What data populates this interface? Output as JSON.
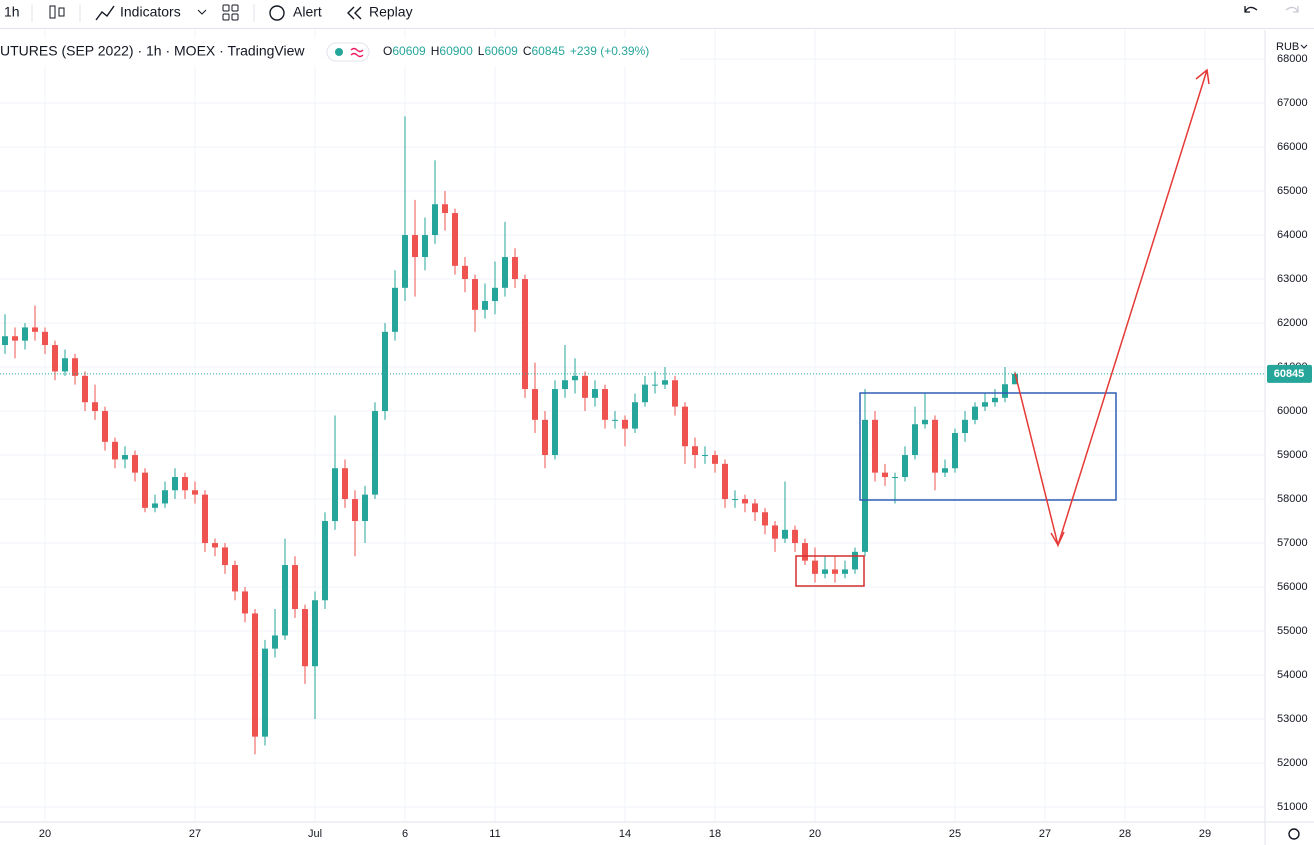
{
  "toolbar": {
    "interval": "1h",
    "indicators": "Indicators",
    "alert": "Alert",
    "replay": "Replay"
  },
  "chart_data": {
    "type": "candlestick",
    "title": "UTURES (SEP 2022) · 1h · MOEX · TradingView",
    "ohlc_labels": [
      "O",
      "H",
      "L",
      "C"
    ],
    "change": "+239 (+0.39%)",
    "currency": "RUB",
    "up_color": "#26a69a",
    "down_color": "#ef5350",
    "grid": true,
    "categories": [
      null,
      null,
      null,
      null,
      "20",
      null,
      null,
      null,
      null,
      null,
      null,
      null,
      null,
      null,
      null,
      null,
      null,
      null,
      null,
      "27",
      null,
      null,
      null,
      null,
      null,
      null,
      null,
      null,
      null,
      null,
      null,
      "Jul",
      null,
      null,
      null,
      null,
      null,
      null,
      null,
      null,
      "6",
      null,
      null,
      null,
      null,
      null,
      null,
      null,
      null,
      "11",
      null,
      null,
      null,
      null,
      null,
      null,
      null,
      null,
      null,
      null,
      null,
      null,
      "14",
      null,
      null,
      null,
      null,
      null,
      null,
      null,
      null,
      "18",
      null,
      null,
      null,
      null,
      null,
      null,
      null,
      null,
      null,
      "20",
      null,
      null,
      null,
      null,
      null,
      null,
      null,
      null,
      null,
      null,
      null,
      null,
      null,
      "25",
      null,
      null,
      null,
      null,
      null,
      null,
      null,
      null,
      "27",
      null,
      null,
      null,
      null,
      null,
      null,
      null,
      "28",
      null,
      null,
      null,
      null,
      null,
      null,
      null,
      "29",
      null,
      null,
      null,
      null,
      null
    ],
    "open": [
      61500,
      61700,
      61600,
      61900,
      61800,
      61500,
      60900,
      61200,
      60800,
      60200,
      60000,
      59300,
      58900,
      59000,
      58600,
      57800,
      57900,
      58200,
      58500,
      58200,
      58100,
      57000,
      56900,
      56500,
      55900,
      55400,
      52600,
      54600,
      54900,
      56500,
      55500,
      54200,
      55700,
      57500,
      58700,
      58000,
      57500,
      58100,
      60000,
      61800,
      62800,
      64000,
      63500,
      64000,
      64700,
      64500,
      63300,
      63000,
      62300,
      62500,
      62800,
      63500,
      63000,
      60500,
      59800,
      59000,
      60500,
      60700,
      60800,
      60300,
      60500,
      59800,
      59800,
      59600,
      60200,
      60600,
      60600,
      60700,
      60100,
      59200,
      59000,
      59000,
      58800,
      58000,
      58000,
      57900,
      57700,
      57400,
      57100,
      57300,
      57000,
      56600,
      56300,
      56400,
      56300,
      56400,
      56800,
      59800,
      58600,
      58500,
      58500,
      59000,
      59700,
      59800,
      58600,
      58700,
      59500,
      59800,
      60100,
      60200,
      60300,
      60609,
      null,
      null,
      null,
      null,
      null,
      null,
      null,
      null,
      null,
      null,
      null,
      null,
      null,
      null,
      null,
      null,
      null,
      null,
      null,
      null,
      null,
      null,
      null,
      null
    ],
    "high": [
      62200,
      61900,
      62000,
      62400,
      61900,
      61600,
      61400,
      61300,
      60900,
      60600,
      60100,
      59400,
      59200,
      59100,
      58700,
      58100,
      58400,
      58700,
      58600,
      58400,
      58200,
      57100,
      57000,
      56600,
      56000,
      55500,
      54800,
      55500,
      57100,
      56700,
      55600,
      55900,
      57700,
      59900,
      58900,
      58200,
      58300,
      60200,
      62000,
      63200,
      66700,
      64800,
      64400,
      65700,
      65000,
      64600,
      63500,
      63100,
      62900,
      63400,
      64300,
      63700,
      63100,
      61100,
      60000,
      60700,
      61500,
      61200,
      60900,
      60700,
      60600,
      60000,
      59900,
      60400,
      60800,
      60900,
      61000,
      60800,
      60200,
      59400,
      59200,
      59100,
      58900,
      58200,
      58100,
      58000,
      57800,
      57500,
      58400,
      57400,
      57100,
      56900,
      56700,
      56700,
      56600,
      56900,
      60500,
      60000,
      58800,
      58600,
      59200,
      60100,
      60400,
      59900,
      58900,
      59600,
      60000,
      60200,
      60400,
      60500,
      61000,
      60900,
      null,
      null,
      null,
      null,
      null,
      null,
      null,
      null,
      null,
      null,
      null,
      null,
      null,
      null,
      null,
      null,
      null,
      null,
      null,
      null,
      null,
      null,
      null,
      null
    ],
    "low": [
      61300,
      61200,
      61400,
      61600,
      61300,
      60700,
      60800,
      60600,
      60000,
      59800,
      59100,
      58700,
      58700,
      58400,
      57700,
      57700,
      57800,
      58000,
      58000,
      57900,
      56800,
      56700,
      56300,
      55700,
      55200,
      52200,
      52400,
      54400,
      54800,
      55300,
      53800,
      53000,
      55500,
      57300,
      57800,
      56700,
      57000,
      58000,
      59800,
      61600,
      62500,
      62600,
      63200,
      63800,
      64100,
      63100,
      62700,
      61800,
      62100,
      62200,
      62600,
      62800,
      60300,
      59500,
      58700,
      58900,
      60300,
      60400,
      60000,
      60100,
      59600,
      59600,
      59200,
      59500,
      60100,
      60400,
      60500,
      59900,
      58800,
      58700,
      58800,
      58600,
      57800,
      57800,
      57700,
      57500,
      57200,
      56800,
      57000,
      56800,
      56500,
      56100,
      56200,
      56100,
      56200,
      56300,
      56700,
      58400,
      58300,
      57900,
      58400,
      58900,
      59600,
      58200,
      58500,
      58600,
      59300,
      59700,
      60000,
      60100,
      60200,
      60609,
      null,
      null,
      null,
      null,
      null,
      null,
      null,
      null,
      null,
      null,
      null,
      null,
      null,
      null,
      null,
      null,
      null,
      null,
      null,
      null,
      null,
      null,
      null,
      null
    ],
    "close": [
      61700,
      61600,
      61900,
      61800,
      61500,
      60900,
      61200,
      60800,
      60200,
      60000,
      59300,
      58900,
      59000,
      58600,
      57800,
      57900,
      58200,
      58500,
      58200,
      58100,
      57000,
      56900,
      56500,
      55900,
      55400,
      52600,
      54600,
      54900,
      56500,
      55500,
      54200,
      55700,
      57500,
      58700,
      58000,
      57500,
      58100,
      60000,
      61800,
      62800,
      64000,
      63500,
      64000,
      64700,
      64500,
      63300,
      63000,
      62300,
      62500,
      62800,
      63500,
      63000,
      60500,
      59800,
      59000,
      60500,
      60700,
      60800,
      60300,
      60500,
      59800,
      59800,
      59600,
      60200,
      60600,
      60600,
      60700,
      60100,
      59200,
      59000,
      59000,
      58800,
      58000,
      58000,
      57900,
      57700,
      57400,
      57100,
      57300,
      57000,
      56600,
      56300,
      56400,
      56300,
      56400,
      56800,
      59800,
      58600,
      58500,
      58500,
      59000,
      59700,
      59800,
      58600,
      58700,
      59500,
      59800,
      60100,
      60200,
      60300,
      60609,
      60845,
      null,
      null,
      null,
      null,
      null,
      null,
      null,
      null,
      null,
      null,
      null,
      null,
      null,
      null,
      null,
      null,
      null,
      null,
      null,
      null,
      null,
      null,
      null,
      null
    ],
    "ylim": [
      50660,
      68660
    ],
    "yticks": [
      51000,
      52000,
      53000,
      54000,
      55000,
      56000,
      57000,
      58000,
      59000,
      60000,
      61000,
      62000,
      63000,
      64000,
      65000,
      66000,
      67000,
      68000
    ]
  }
}
